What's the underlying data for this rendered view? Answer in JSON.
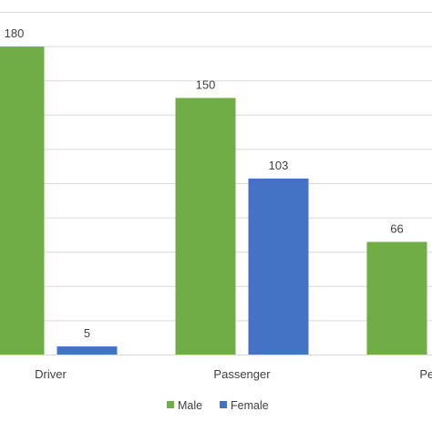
{
  "chart_data": {
    "type": "bar",
    "categories": [
      "Driver",
      "Passenger",
      "Pede"
    ],
    "series": [
      {
        "name": "Male",
        "values": [
          180,
          150,
          66
        ],
        "color": "#70ad47"
      },
      {
        "name": "Female",
        "values": [
          5,
          103,
          null
        ],
        "color": "#4472c4"
      }
    ],
    "data_labels": [
      [
        "180",
        "150",
        "66"
      ],
      [
        "5",
        "103",
        ""
      ]
    ],
    "ylim": [
      0,
      200
    ],
    "grid": true,
    "legend_position": "bottom"
  }
}
